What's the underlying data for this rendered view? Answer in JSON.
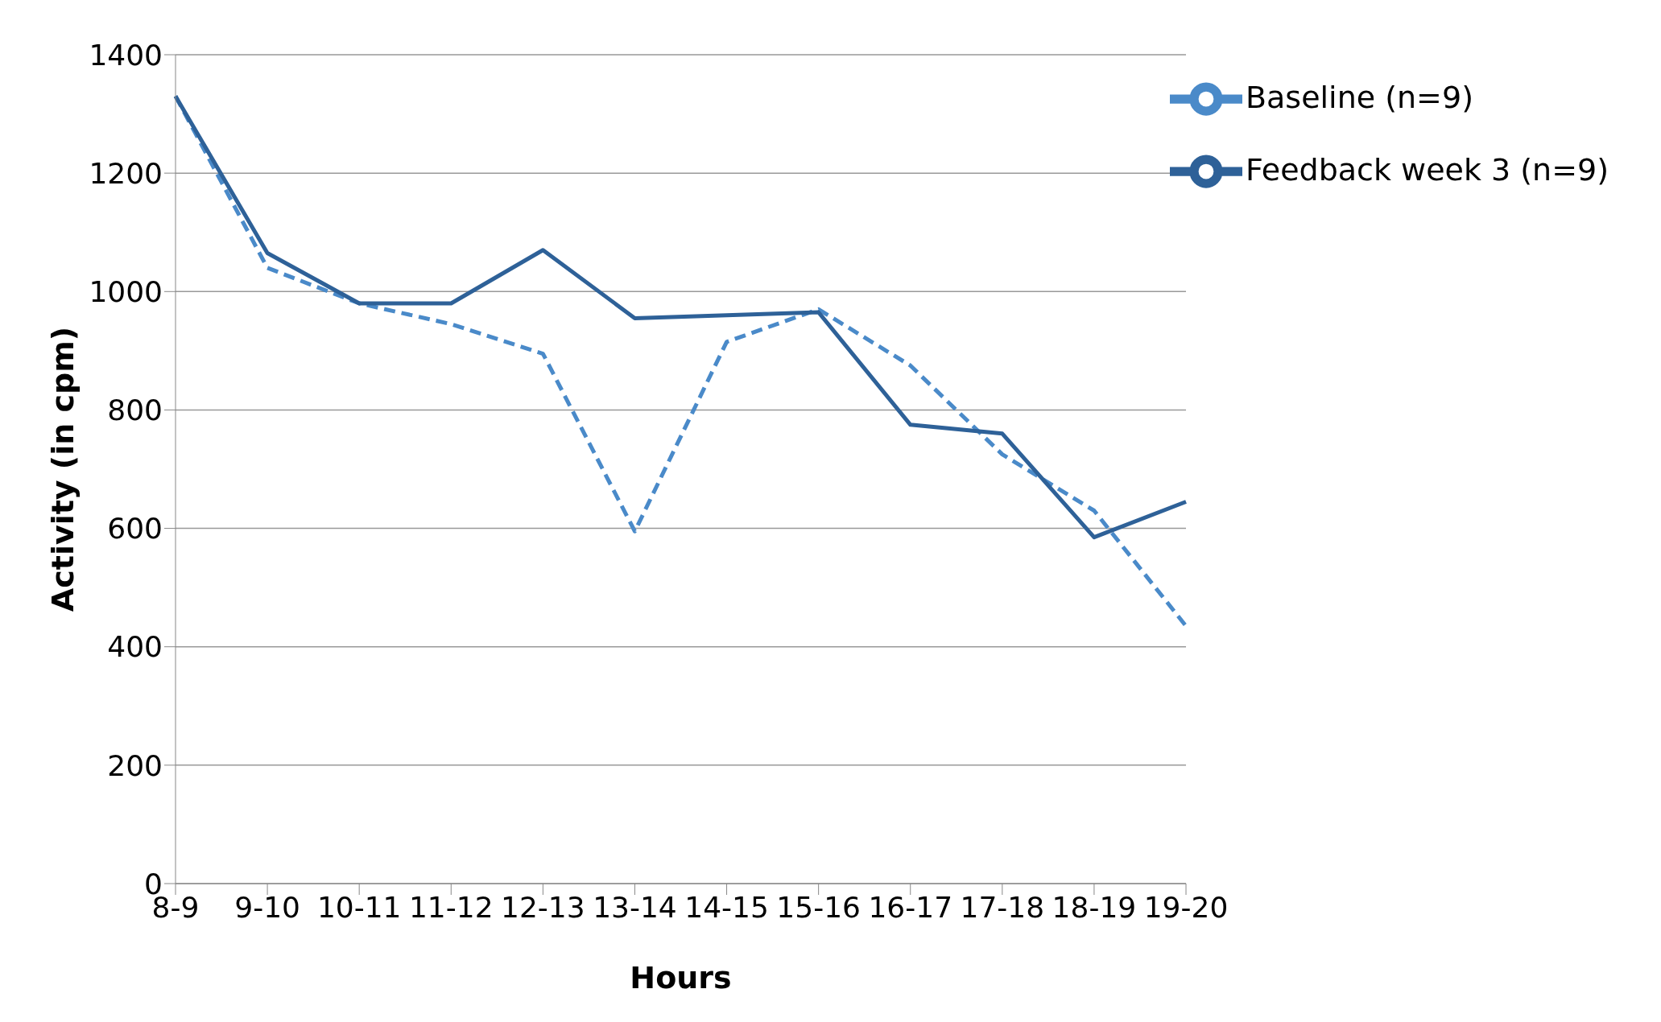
{
  "chart_data": {
    "type": "line",
    "xlabel": "Hours",
    "ylabel": "Activity (in cpm)",
    "categories": [
      "8-9",
      "9-10",
      "10-11",
      "11-12",
      "12-13",
      "13-14",
      "14-15",
      "15-16",
      "16-17",
      "17-18",
      "18-19",
      "19-20"
    ],
    "series": [
      {
        "name": "Baseline (n=9)",
        "color": "#4a8ac9",
        "line_style": "dashed",
        "values": [
          1330,
          1040,
          980,
          945,
          895,
          595,
          915,
          970,
          875,
          725,
          630,
          435
        ]
      },
      {
        "name": "Feedback week 3 (n=9)",
        "color": "#2e6198",
        "line_style": "solid",
        "values": [
          1330,
          1065,
          980,
          980,
          1070,
          955,
          960,
          965,
          775,
          760,
          585,
          645
        ]
      }
    ],
    "ylim": [
      0,
      1400
    ],
    "yticks": [
      0,
      200,
      400,
      600,
      800,
      1000,
      1200,
      1400
    ],
    "grid": "y",
    "legend": "top right",
    "marker": "none"
  }
}
